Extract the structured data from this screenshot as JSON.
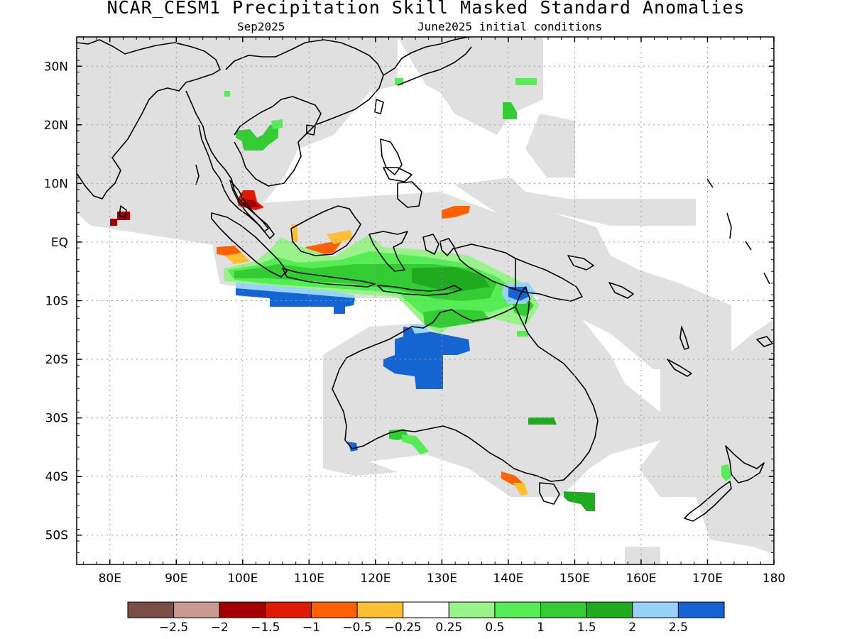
{
  "title": "NCAR_CESM1 Precipitation Skill Masked Standard Anomalies",
  "subtitle_left": "Sep2025",
  "subtitle_right": "June2025 initial conditions",
  "map": {
    "lon_range": [
      75,
      180
    ],
    "lat_range": [
      -55,
      35
    ],
    "lon_ticks": [
      {
        "lon": 80,
        "label": "80E"
      },
      {
        "lon": 90,
        "label": "90E"
      },
      {
        "lon": 100,
        "label": "100E"
      },
      {
        "lon": 110,
        "label": "110E"
      },
      {
        "lon": 120,
        "label": "120E"
      },
      {
        "lon": 130,
        "label": "130E"
      },
      {
        "lon": 140,
        "label": "140E"
      },
      {
        "lon": 150,
        "label": "150E"
      },
      {
        "lon": 160,
        "label": "160E"
      },
      {
        "lon": 170,
        "label": "170E"
      },
      {
        "lon": 180,
        "label": "180"
      }
    ],
    "lat_ticks": [
      {
        "lat": 30,
        "label": "30N"
      },
      {
        "lat": 20,
        "label": "20N"
      },
      {
        "lat": 10,
        "label": "10N"
      },
      {
        "lat": 0,
        "label": "EQ"
      },
      {
        "lat": -10,
        "label": "10S"
      },
      {
        "lat": -20,
        "label": "20S"
      },
      {
        "lat": -30,
        "label": "30S"
      },
      {
        "lat": -40,
        "label": "40S"
      },
      {
        "lat": -50,
        "label": "50S"
      }
    ],
    "grid": true,
    "mask_color": "#e0e0e0",
    "land_outline_color": "#000000"
  },
  "colorbar": {
    "colors": [
      "#7a4e44",
      "#c99a90",
      "#a00000",
      "#e01a00",
      "#ff6100",
      "#ffbf33",
      "#ffffff",
      "#9af28a",
      "#55ec55",
      "#33cc33",
      "#1faa1f",
      "#96d2fa",
      "#1464d2"
    ],
    "labels": [
      "−2.5",
      "−2",
      "−1.5",
      "−1",
      "−0.5",
      "−0.25",
      "0.25",
      "0.5",
      "1",
      "1.5",
      "2",
      "2.5"
    ]
  }
}
